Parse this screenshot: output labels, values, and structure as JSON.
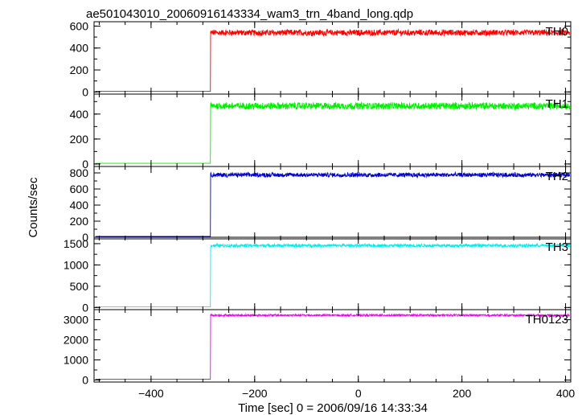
{
  "chart_data": {
    "type": "line",
    "title": "ae501043010_20060916143334_wam3_trn_4band_long.qdp",
    "xlabel": "Time [sec] 0 = 2006/09/16 14:33:34",
    "ylabel": "Counts/sec",
    "xlim": [
      -510,
      410
    ],
    "xticks": [
      -400,
      -200,
      0,
      200,
      400
    ],
    "step_time": -285,
    "panels": [
      {
        "name": "TH0",
        "color": "#ff0000",
        "ylim": [
          -20,
          640
        ],
        "yticks": [
          0,
          200,
          400,
          600
        ],
        "baseline": 5,
        "level": 540,
        "noise": 25
      },
      {
        "name": "TH1",
        "color": "#00ee00",
        "ylim": [
          -20,
          560
        ],
        "yticks": [
          0,
          200,
          400
        ],
        "baseline": 5,
        "level": 465,
        "noise": 25
      },
      {
        "name": "TH2",
        "color": "#0000cc",
        "ylim": [
          -20,
          880
        ],
        "yticks": [
          0,
          200,
          400,
          600,
          800
        ],
        "baseline": 10,
        "level": 775,
        "noise": 25
      },
      {
        "name": "TH3",
        "color": "#00eeee",
        "ylim": [
          -50,
          1650
        ],
        "yticks": [
          0,
          500,
          1000,
          1500
        ],
        "baseline": 15,
        "level": 1455,
        "noise": 35
      },
      {
        "name": "TH0123",
        "color": "#ee00ee",
        "ylim": [
          -100,
          3500
        ],
        "yticks": [
          0,
          1000,
          2000,
          3000
        ],
        "baseline": 40,
        "level": 3220,
        "noise": 45
      }
    ]
  }
}
